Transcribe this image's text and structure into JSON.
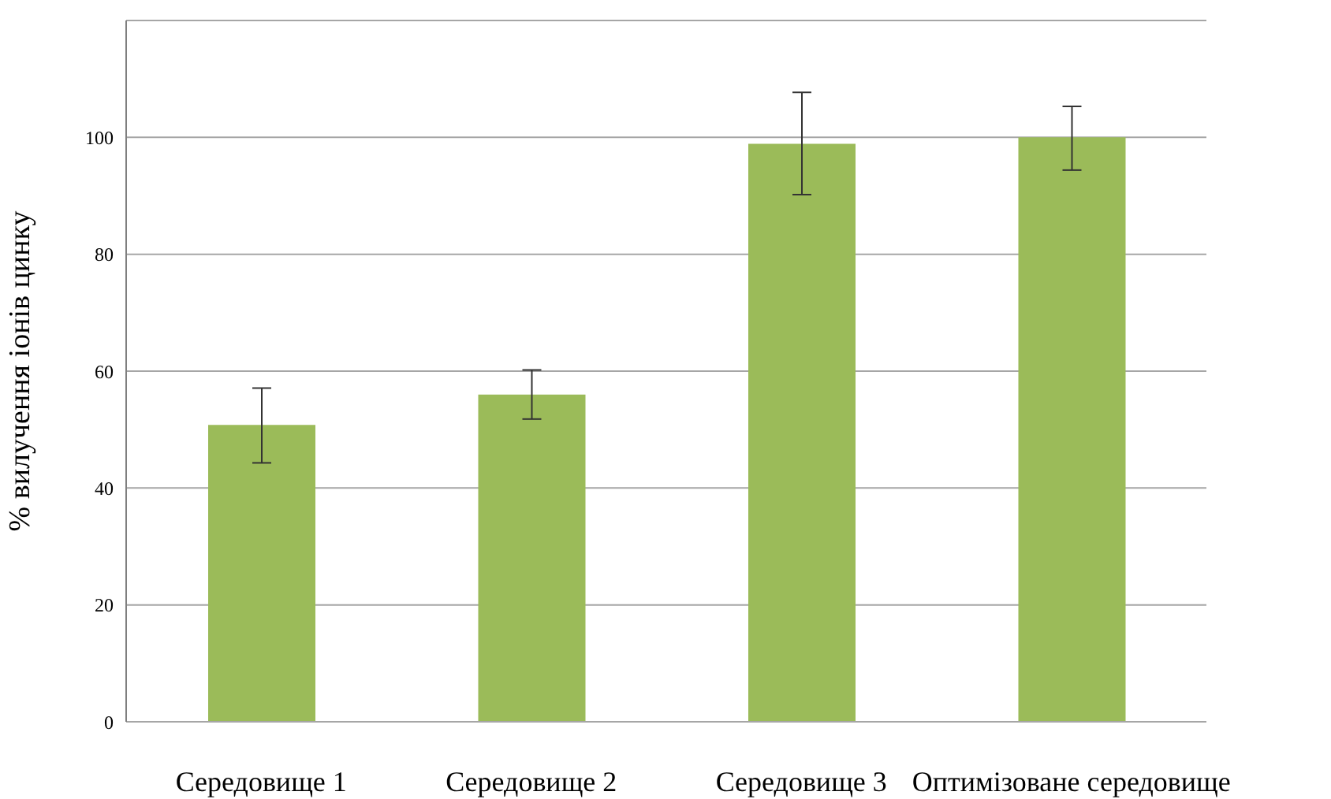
{
  "chart_data": {
    "type": "bar",
    "ylabel": "% вилучення іонів цинку",
    "categories": [
      "Середовище 1",
      "Середовище 2",
      "Середовище 3",
      "Оптимізоване середовище"
    ],
    "values": [
      50.8,
      56,
      98.9,
      100
    ],
    "errors": [
      [
        44.3,
        57.1
      ],
      [
        51.8,
        60.2
      ],
      [
        90.2,
        107.7
      ],
      [
        94.4,
        105.3
      ]
    ],
    "color": "#9bbb59",
    "ylim": [
      0,
      120
    ],
    "yticks": [
      0,
      20,
      40,
      60,
      80,
      100
    ],
    "grid": "y"
  }
}
